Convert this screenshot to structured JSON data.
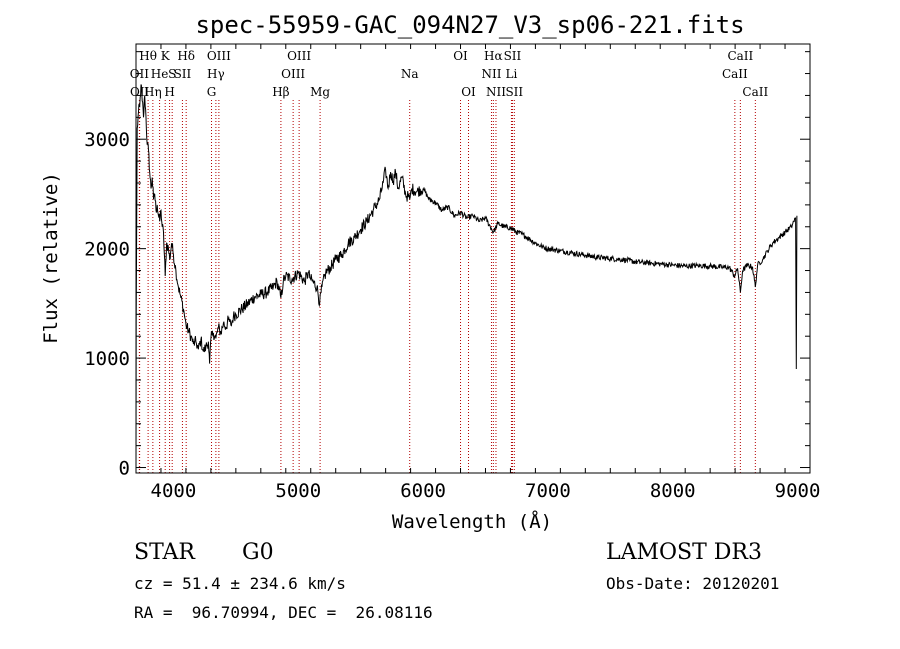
{
  "chart_data": {
    "type": "line",
    "title": "spec-55959-GAC_094N27_V3_sp06-221.fits",
    "xlabel": "Wavelength (Å)",
    "ylabel": "Flux (relative)",
    "xlim": [
      3700,
      9100
    ],
    "ylim": [
      -50,
      3870
    ],
    "xticks": [
      4000,
      5000,
      6000,
      7000,
      8000,
      9000
    ],
    "yticks": [
      0,
      1000,
      2000,
      3000
    ],
    "series": [
      {
        "name": "flux",
        "points": [
          [
            3700,
            0
          ],
          [
            3702,
            1350
          ],
          [
            3710,
            3100
          ],
          [
            3720,
            3250
          ],
          [
            3730,
            3300
          ],
          [
            3740,
            3500
          ],
          [
            3750,
            3350
          ],
          [
            3760,
            3200
          ],
          [
            3770,
            3400
          ],
          [
            3780,
            3200
          ],
          [
            3790,
            2950
          ],
          [
            3800,
            2900
          ],
          [
            3810,
            2700
          ],
          [
            3820,
            2550
          ],
          [
            3830,
            2650
          ],
          [
            3840,
            2450
          ],
          [
            3850,
            2500
          ],
          [
            3860,
            2350
          ],
          [
            3870,
            2400
          ],
          [
            3880,
            2300
          ],
          [
            3890,
            2250
          ],
          [
            3900,
            2350
          ],
          [
            3910,
            2200
          ],
          [
            3920,
            2150
          ],
          [
            3934,
            1750
          ],
          [
            3945,
            2050
          ],
          [
            3960,
            2000
          ],
          [
            3970,
            1900
          ],
          [
            3985,
            2050
          ],
          [
            4000,
            1950
          ],
          [
            4020,
            1800
          ],
          [
            4040,
            1650
          ],
          [
            4060,
            1550
          ],
          [
            4080,
            1450
          ],
          [
            4101,
            1300
          ],
          [
            4120,
            1250
          ],
          [
            4140,
            1200
          ],
          [
            4160,
            1130
          ],
          [
            4180,
            1150
          ],
          [
            4200,
            1080
          ],
          [
            4220,
            1170
          ],
          [
            4240,
            1060
          ],
          [
            4260,
            1100
          ],
          [
            4280,
            1150
          ],
          [
            4290,
            950
          ],
          [
            4300,
            1180
          ],
          [
            4320,
            1230
          ],
          [
            4340,
            1180
          ],
          [
            4360,
            1280
          ],
          [
            4380,
            1230
          ],
          [
            4400,
            1320
          ],
          [
            4420,
            1280
          ],
          [
            4440,
            1350
          ],
          [
            4460,
            1300
          ],
          [
            4480,
            1380
          ],
          [
            4500,
            1400
          ],
          [
            4550,
            1450
          ],
          [
            4600,
            1500
          ],
          [
            4650,
            1560
          ],
          [
            4700,
            1580
          ],
          [
            4750,
            1600
          ],
          [
            4800,
            1650
          ],
          [
            4830,
            1700
          ],
          [
            4861,
            1550
          ],
          [
            4880,
            1700
          ],
          [
            4900,
            1750
          ],
          [
            4950,
            1720
          ],
          [
            5000,
            1780
          ],
          [
            5050,
            1700
          ],
          [
            5080,
            1780
          ],
          [
            5100,
            1720
          ],
          [
            5150,
            1650
          ],
          [
            5172,
            1500
          ],
          [
            5190,
            1650
          ],
          [
            5220,
            1780
          ],
          [
            5260,
            1830
          ],
          [
            5300,
            1900
          ],
          [
            5350,
            1950
          ],
          [
            5400,
            2050
          ],
          [
            5450,
            2100
          ],
          [
            5500,
            2180
          ],
          [
            5550,
            2250
          ],
          [
            5600,
            2350
          ],
          [
            5650,
            2450
          ],
          [
            5680,
            2600
          ],
          [
            5700,
            2720
          ],
          [
            5720,
            2550
          ],
          [
            5740,
            2700
          ],
          [
            5760,
            2620
          ],
          [
            5780,
            2700
          ],
          [
            5800,
            2550
          ],
          [
            5830,
            2650
          ],
          [
            5860,
            2500
          ],
          [
            5893,
            2450
          ],
          [
            5910,
            2550
          ],
          [
            5950,
            2520
          ],
          [
            6000,
            2550
          ],
          [
            6050,
            2450
          ],
          [
            6100,
            2420
          ],
          [
            6150,
            2350
          ],
          [
            6200,
            2380
          ],
          [
            6250,
            2300
          ],
          [
            6300,
            2330
          ],
          [
            6350,
            2280
          ],
          [
            6400,
            2300
          ],
          [
            6450,
            2250
          ],
          [
            6500,
            2280
          ],
          [
            6563,
            2150
          ],
          [
            6600,
            2230
          ],
          [
            6650,
            2200
          ],
          [
            6700,
            2190
          ],
          [
            6750,
            2150
          ],
          [
            6800,
            2130
          ],
          [
            6850,
            2090
          ],
          [
            6900,
            2050
          ],
          [
            6950,
            2020
          ],
          [
            7000,
            2000
          ],
          [
            7050,
            1990
          ],
          [
            7100,
            1980
          ],
          [
            7200,
            1960
          ],
          [
            7300,
            1940
          ],
          [
            7400,
            1920
          ],
          [
            7500,
            1910
          ],
          [
            7600,
            1900
          ],
          [
            7700,
            1880
          ],
          [
            7800,
            1870
          ],
          [
            7900,
            1860
          ],
          [
            8000,
            1850
          ],
          [
            8100,
            1840
          ],
          [
            8200,
            1845
          ],
          [
            8300,
            1840
          ],
          [
            8400,
            1830
          ],
          [
            8450,
            1830
          ],
          [
            8498,
            1750
          ],
          [
            8520,
            1820
          ],
          [
            8542,
            1600
          ],
          [
            8560,
            1800
          ],
          [
            8600,
            1850
          ],
          [
            8640,
            1830
          ],
          [
            8662,
            1650
          ],
          [
            8680,
            1850
          ],
          [
            8720,
            1900
          ],
          [
            8760,
            1980
          ],
          [
            8800,
            2050
          ],
          [
            8850,
            2100
          ],
          [
            8900,
            2150
          ],
          [
            8950,
            2200
          ],
          [
            8970,
            2250
          ],
          [
            8985,
            2280
          ],
          [
            8990,
            900
          ],
          [
            8995,
            2300
          ]
        ]
      }
    ],
    "line_markers": [
      {
        "label": "Hθ",
        "wave": 3797,
        "row": 0
      },
      {
        "label": "OII",
        "wave": 3727,
        "row": 1
      },
      {
        "label": "OII",
        "wave": 3729,
        "row": 2
      },
      {
        "label": "He",
        "wave": 3889,
        "row": 1
      },
      {
        "label": "Hη",
        "wave": 3835,
        "row": 2
      },
      {
        "label": "K",
        "wave": 3934,
        "row": 0
      },
      {
        "label": "S",
        "wave": 3990,
        "row": 1
      },
      {
        "label": "H",
        "wave": 3969,
        "row": 2
      },
      {
        "label": "Hδ",
        "wave": 4102,
        "row": 0
      },
      {
        "label": "SII",
        "wave": 4072,
        "row": 1
      },
      {
        "label": "OIII",
        "wave": 4364,
        "row": 0
      },
      {
        "label": "Hγ",
        "wave": 4340,
        "row": 1
      },
      {
        "label": "G",
        "wave": 4305,
        "row": 2
      },
      {
        "label": "OIII",
        "wave": 5007,
        "row": 0
      },
      {
        "label": "OIII",
        "wave": 4959,
        "row": 1
      },
      {
        "label": "Hβ",
        "wave": 4861,
        "row": 2
      },
      {
        "label": "Mg",
        "wave": 5175,
        "row": 2
      },
      {
        "label": "Na",
        "wave": 5893,
        "row": 1
      },
      {
        "label": "OI",
        "wave": 6300,
        "row": 0
      },
      {
        "label": "OI",
        "wave": 6364,
        "row": 2
      },
      {
        "label": "Hα",
        "wave": 6563,
        "row": 0
      },
      {
        "label": "SII",
        "wave": 6716,
        "row": 0
      },
      {
        "label": "NII",
        "wave": 6548,
        "row": 1
      },
      {
        "label": "Li",
        "wave": 6708,
        "row": 1
      },
      {
        "label": "NII",
        "wave": 6584,
        "row": 2
      },
      {
        "label": "SII",
        "wave": 6731,
        "row": 2
      },
      {
        "label": "CaII",
        "wave": 8542,
        "row": 0
      },
      {
        "label": "CaII",
        "wave": 8498,
        "row": 1
      },
      {
        "label": "CaII",
        "wave": 8662,
        "row": 2
      }
    ]
  },
  "info": {
    "class": "STAR",
    "subclass": "G0",
    "survey": "LAMOST DR3",
    "redshift": "cz = 51.4 ± 234.6 km/s",
    "obs_date": "Obs-Date: 20120201",
    "coords": "RA =  96.70994, DEC =  26.08116"
  }
}
